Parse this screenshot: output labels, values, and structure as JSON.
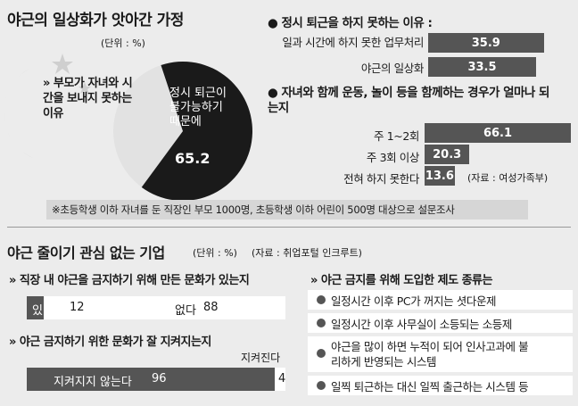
{
  "top_left": {
    "title": "야근의 일상화가 앗아간 가정",
    "unit": "(단위 : %)",
    "pie_label": "» 부모가 자녀와 시간을 보내지 못하는 이유",
    "slice_text": "정시 퇴근이 불가능하기 때문에",
    "slice_value": "65.2"
  },
  "reasons": {
    "title": "● 정시 퇴근을 하지 못하는 이유 :",
    "items": [
      {
        "label": "일과 시간에 하지 못한 업무처리",
        "value": "35.9"
      },
      {
        "label": "야근의 일상화",
        "value": "33.5"
      }
    ]
  },
  "frequency": {
    "title": "● 자녀와 함께 운동, 놀이 등을 함께하는 경우가 얼마나 되는지",
    "items": [
      {
        "label": "주 1~2회",
        "value": "66.1"
      },
      {
        "label": "주 3회 이상",
        "value": "20.3"
      },
      {
        "label": "전혀 하지 못한다",
        "value": "13.6"
      }
    ],
    "source": "(자료 : 여성가족부)"
  },
  "survey_note": "※초등학생 이하 자녀를 둔 직장인 부모 1000명, 초등학생 이하 어린이 500명 대상으로 설문조사",
  "bottom": {
    "title": "야근 줄이기 관심 없는 기업",
    "unit": "(단위 : %)",
    "source": "(자료 : 취업포털 인크루트)",
    "q1": {
      "title": "» 직장 내 야근을 금지하기 위해 만든 문화가 있는지",
      "yes_label": "있다",
      "yes_value": "12",
      "no_label": "없다",
      "no_value": "88"
    },
    "q2": {
      "title": "» 야근 금지하기 위한 문화가 잘 지켜지는지",
      "kept_label": "지켜진다",
      "kept_value": "4",
      "notkept_label": "지켜지지 않는다",
      "notkept_value": "96"
    },
    "systems": {
      "title": "» 야근 금지를 위해 도입한 제도 종류는",
      "items": [
        "일정시간 이후 PC가 꺼지는 셧다운제",
        "일정시간 이후 사무실이 소등되는 소등제",
        "야근을 많이 하면 누적이 되어 인사고과에 불리하게 반영되는 시스템",
        "일찍 퇴근하는 대신 일찍 출근하는 시스템 등"
      ]
    }
  },
  "chart_data": [
    {
      "type": "pie",
      "categories": [
        "정시 퇴근이 불가능하기 때문에"
      ],
      "values": [
        65.2
      ]
    },
    {
      "type": "bar",
      "categories": [
        "일과 시간에 하지 못한 업무처리",
        "야근의 일상화"
      ],
      "values": [
        35.9,
        33.5
      ]
    },
    {
      "type": "bar",
      "categories": [
        "주 1~2회",
        "주 3회 이상",
        "전혀 하지 못한다"
      ],
      "values": [
        66.1,
        20.3,
        13.6
      ]
    },
    {
      "type": "bar",
      "categories": [
        "있다",
        "없다"
      ],
      "values": [
        12,
        88
      ]
    },
    {
      "type": "bar",
      "categories": [
        "지켜지지 않는다",
        "지켜진다"
      ],
      "values": [
        96,
        4
      ]
    }
  ],
  "colors": {
    "bar": "#555555",
    "dark": "#1a1a1a",
    "note_bg": "#d6d6d6"
  }
}
